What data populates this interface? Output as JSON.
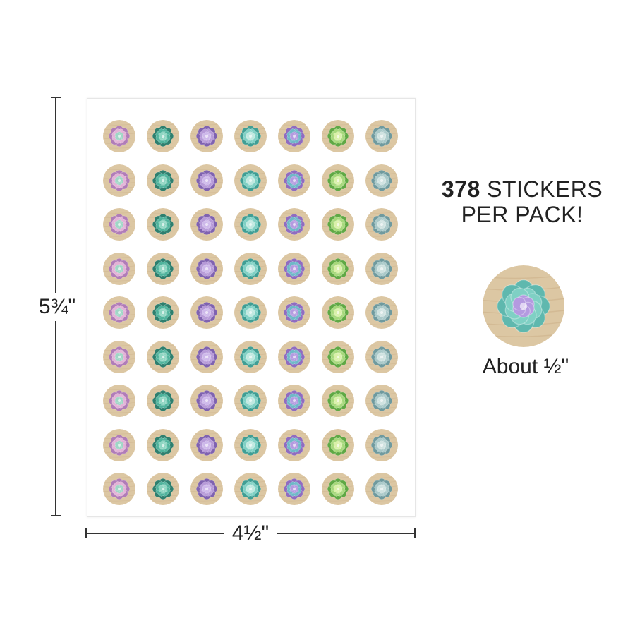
{
  "dimensions": {
    "height_label": "5¾\"",
    "width_label": "4½\""
  },
  "promo": {
    "count": "378",
    "line1_rest": " STICKERS",
    "line2": "PER PACK!"
  },
  "sample": {
    "size_label": "About ½\""
  },
  "sheet": {
    "rows": 9,
    "columns": 7,
    "column_designs": [
      {
        "name": "pink-echeveria",
        "petal": "#e2b2d6",
        "petal_dark": "#b07cb8",
        "center": "#9fd6c6"
      },
      {
        "name": "teal-agave",
        "petal": "#4fb39c",
        "petal_dark": "#2e7f6e",
        "center": "#8fd6c2"
      },
      {
        "name": "purple-echeveria",
        "petal": "#b69ad8",
        "petal_dark": "#7f62b0",
        "center": "#cdb8ea"
      },
      {
        "name": "aqua-rosette",
        "petal": "#7fd0c4",
        "petal_dark": "#3f9e94",
        "center": "#bfe9e0"
      },
      {
        "name": "blue-violet-rosette",
        "petal": "#6fb8c8",
        "petal_dark": "#8f6cc0",
        "center": "#b49ae0"
      },
      {
        "name": "lime-succulent",
        "petal": "#a6d87a",
        "petal_dark": "#5fa844",
        "center": "#d9f0a8"
      },
      {
        "name": "gray-green-rosette",
        "petal": "#a8c8c8",
        "petal_dark": "#6f9a9e",
        "center": "#cfe2e0"
      }
    ],
    "background_wood": "#dcc7a3",
    "background_wood_dark": "#c9ae86"
  }
}
